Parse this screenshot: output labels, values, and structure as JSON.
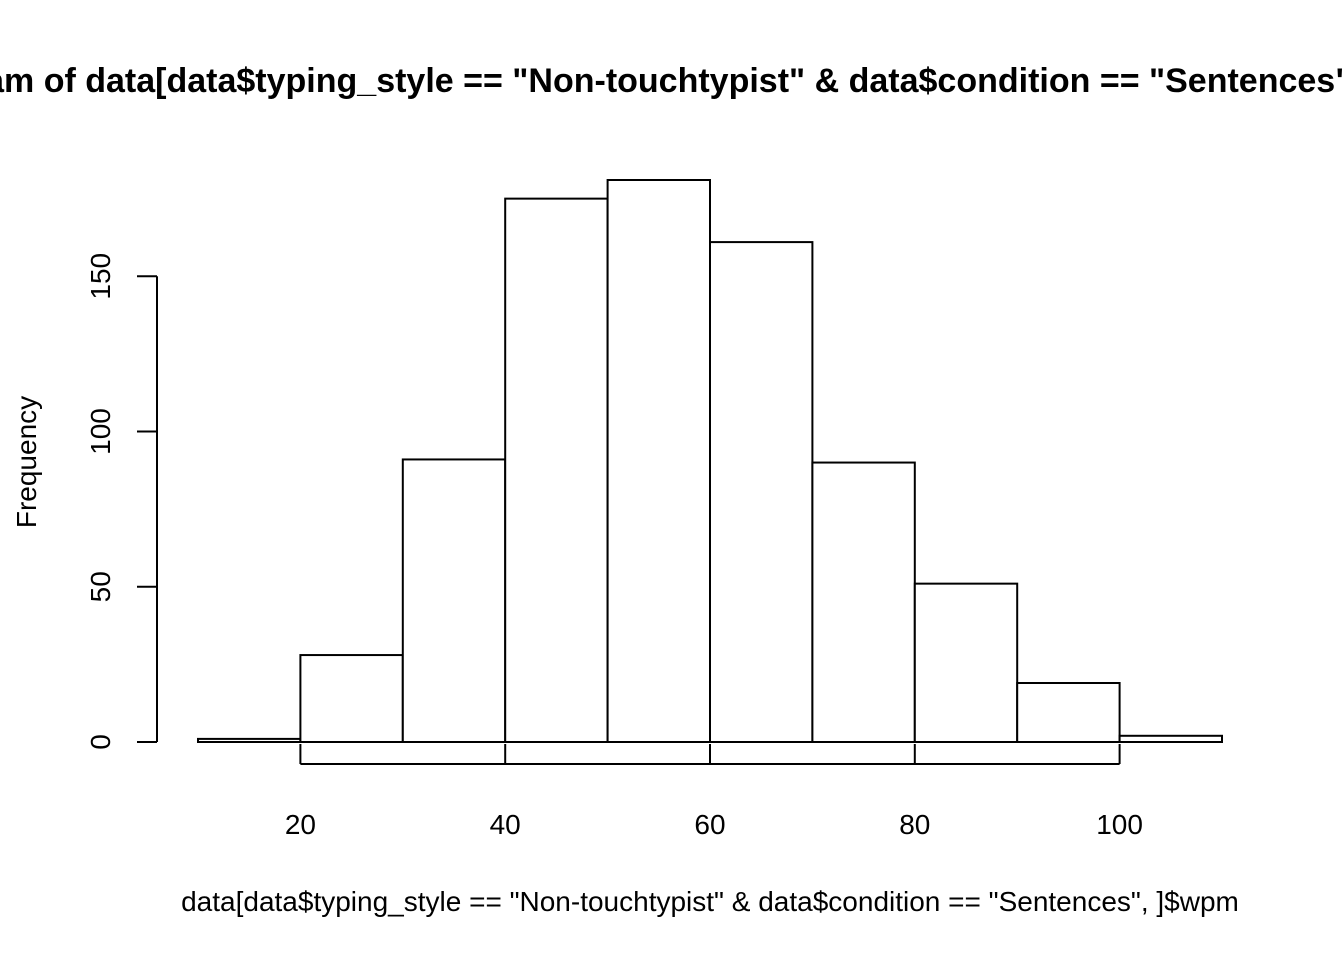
{
  "chart_data": {
    "type": "bar",
    "title": "Histogram of data[data$typing_style == \"Non-touchtypist\" & data$condition == \"Sentences\", ]$wpm",
    "xlabel": "data[data$typing_style == \"Non-touchtypist\" & data$condition == \"Sentences\", ]$wpm",
    "ylabel": "Frequency",
    "bins": [
      {
        "from": 10,
        "to": 20,
        "count": 1
      },
      {
        "from": 20,
        "to": 30,
        "count": 28
      },
      {
        "from": 30,
        "to": 40,
        "count": 91
      },
      {
        "from": 40,
        "to": 50,
        "count": 175
      },
      {
        "from": 50,
        "to": 60,
        "count": 181
      },
      {
        "from": 60,
        "to": 70,
        "count": 161
      },
      {
        "from": 70,
        "to": 80,
        "count": 90
      },
      {
        "from": 80,
        "to": 90,
        "count": 51
      },
      {
        "from": 90,
        "to": 100,
        "count": 19
      },
      {
        "from": 100,
        "to": 110,
        "count": 2
      }
    ],
    "xticks": [
      20,
      40,
      60,
      80,
      100
    ],
    "xtick_labels": [
      "20",
      "40",
      "60",
      "80",
      "100"
    ],
    "yticks": [
      0,
      50,
      100,
      150
    ],
    "ytick_labels": [
      "0",
      "50",
      "100",
      "150"
    ],
    "xlim": [
      10,
      110
    ],
    "ylim": [
      0,
      181
    ],
    "grid": false,
    "colors": {
      "bar_fill": "#ffffff",
      "bar_stroke": "#000000"
    }
  }
}
